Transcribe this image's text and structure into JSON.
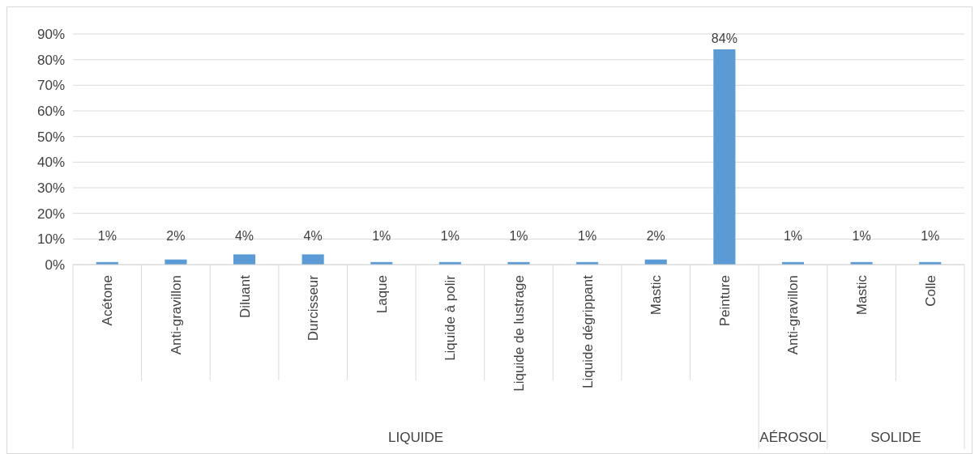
{
  "chart_data": {
    "type": "bar",
    "categories": [
      "Acétone",
      "Anti-gravillon",
      "Diluant",
      "Durcisseur",
      "Laque",
      "Liquide à polir",
      "Liquide de lustrage",
      "Liquide dégrippant",
      "Mastic",
      "Peinture",
      "Anti-gravillon",
      "Mastic",
      "Colle"
    ],
    "values": [
      1,
      2,
      4,
      4,
      1,
      1,
      1,
      1,
      2,
      84,
      1,
      1,
      1
    ],
    "color": "#5b9bd5",
    "value_labels": [
      "1%",
      "2%",
      "4%",
      "4%",
      "1%",
      "1%",
      "1%",
      "1%",
      "2%",
      "84%",
      "1%",
      "1%",
      "1%"
    ],
    "ylim": [
      0,
      90
    ],
    "yticks": [
      {
        "value": 0,
        "label": "0%"
      },
      {
        "value": 10,
        "label": "10%"
      },
      {
        "value": 20,
        "label": "20%"
      },
      {
        "value": 30,
        "label": "30%"
      },
      {
        "value": 40,
        "label": "40%"
      },
      {
        "value": 50,
        "label": "50%"
      },
      {
        "value": 60,
        "label": "60%"
      },
      {
        "value": 70,
        "label": "70%"
      },
      {
        "value": 80,
        "label": "80%"
      },
      {
        "value": 90,
        "label": "90%"
      }
    ],
    "grid": "y",
    "annotations": [
      "LIQUIDE",
      "AÉROSOL",
      "SOLIDE"
    ]
  }
}
